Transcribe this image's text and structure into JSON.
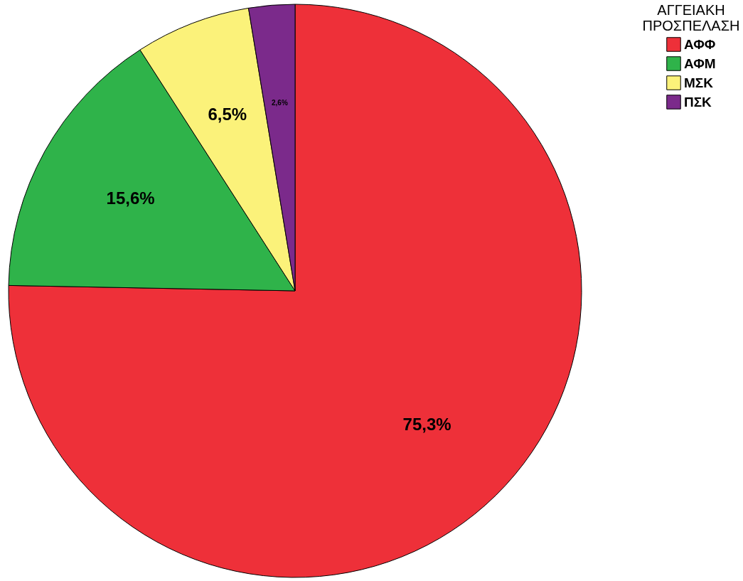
{
  "chart_data": {
    "type": "pie",
    "legend_title": "ΑΓΓΕΙΑΚΗ ΠΡΟΣΠΕΛΑΣΗ",
    "legend": "top right",
    "categories": [
      "ΑΦΦ",
      "ΑΦΜ",
      "ΜΣΚ",
      "ΠΣΚ"
    ],
    "values": [
      75.3,
      15.6,
      6.5,
      2.6
    ],
    "colors": [
      "#ee3039",
      "#2fb34a",
      "#fbf27a",
      "#7b2a8b"
    ],
    "value_labels": [
      "75,3%",
      "15,6%",
      "6,5%",
      "2,6%"
    ]
  }
}
